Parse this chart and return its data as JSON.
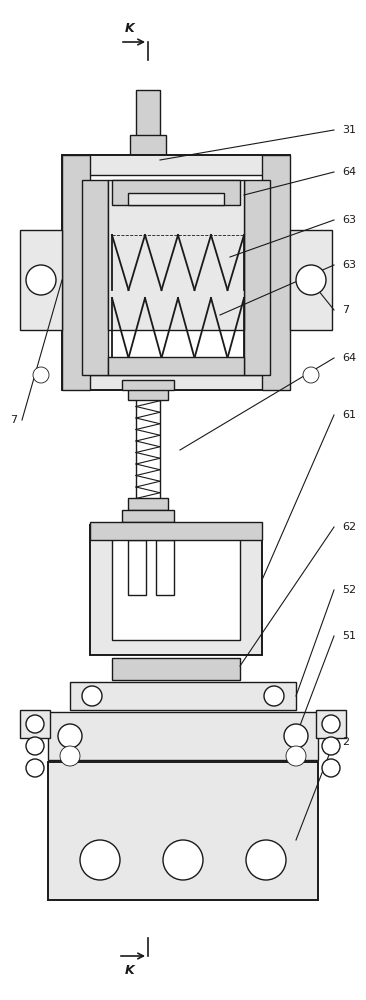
{
  "bg_color": "#ffffff",
  "line_color": "#1a1a1a",
  "fill_light": "#e8e8e8",
  "fill_mid": "#d0d0d0",
  "fill_dark": "#b0b0b0",
  "fill_white": "#ffffff",
  "lw_main": 1.0,
  "lw_thick": 1.4,
  "lw_thin": 0.6,
  "figw": 3.66,
  "figh": 10.0,
  "dpi": 100
}
